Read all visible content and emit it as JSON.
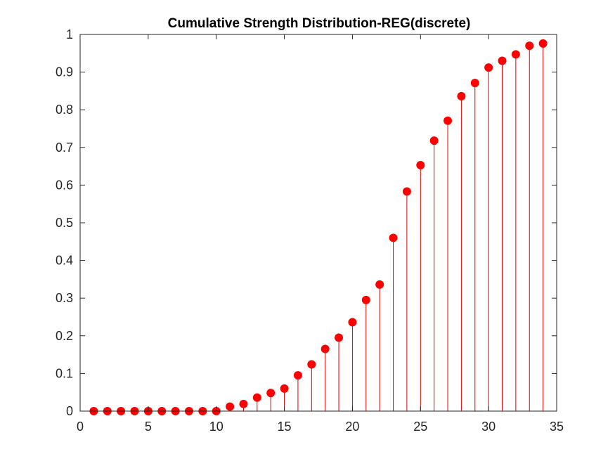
{
  "chart_data": {
    "type": "stem",
    "title": "Cumulative Strength Distribution-REG(discrete)",
    "xlabel": "",
    "ylabel": "",
    "xlim": [
      0,
      35
    ],
    "ylim": [
      0,
      1
    ],
    "xticks": [
      0,
      5,
      10,
      15,
      20,
      25,
      30,
      35
    ],
    "yticks": [
      0,
      0.1,
      0.2,
      0.3,
      0.4,
      0.5,
      0.6,
      0.7,
      0.8,
      0.9,
      1
    ],
    "grid": false,
    "marker_color": "#ff0000",
    "stem_color": "#e00000",
    "series": [
      {
        "x": [
          1,
          2,
          3,
          4,
          5,
          6,
          7,
          8,
          9,
          10,
          11,
          12,
          13,
          14,
          15,
          16,
          17,
          18,
          19,
          20,
          21,
          22,
          23,
          24,
          25,
          26,
          27,
          28,
          29,
          30,
          31,
          32,
          33,
          34
        ],
        "y": [
          0,
          0,
          0,
          0,
          0,
          0,
          0,
          0,
          0,
          0,
          0.012,
          0.019,
          0.036,
          0.048,
          0.06,
          0.095,
          0.124,
          0.165,
          0.195,
          0.236,
          0.295,
          0.336,
          0.46,
          0.583,
          0.653,
          0.718,
          0.771,
          0.836,
          0.871,
          0.912,
          0.93,
          0.947,
          0.97,
          0.976
        ]
      }
    ]
  }
}
